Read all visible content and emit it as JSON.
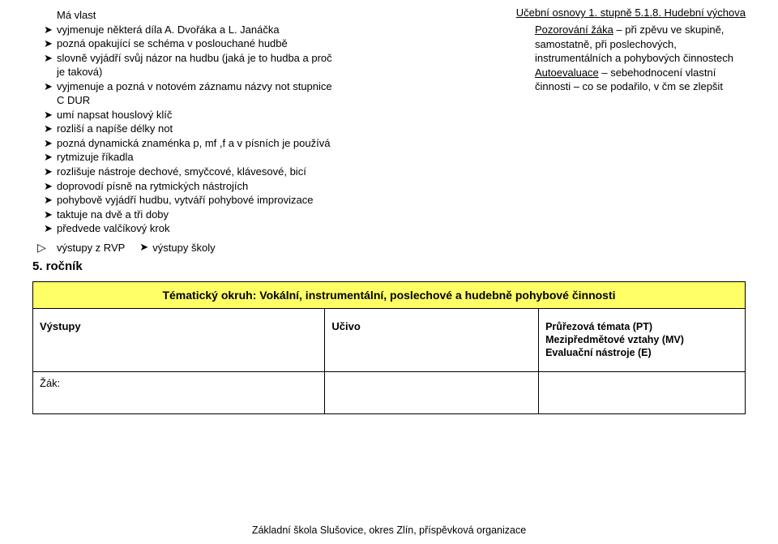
{
  "header": {
    "right": "Učební osnovy 1. stupně 5.1.8. Hudební výchova"
  },
  "left_list": {
    "top_indent": "Má vlast",
    "items": [
      "vyjmenuje některá díla A. Dvořáka a L. Janáčka",
      "pozná opakující se schéma v poslouchané hudbě",
      "slovně vyjádří svůj názor na hudbu (jaká je to hudba a proč je taková)",
      "vyjmenuje a pozná  v notovém záznamu názvy not stupnice C DUR",
      "umí napsat houslový klíč",
      "rozliší a napíše délky not",
      "pozná dynamická znaménka p, mf ,f a v písních je používá",
      "rytmizuje říkadla",
      "rozlišuje nástroje dechové, smyčcové, klávesové, bicí",
      "doprovodí písně na rytmických nástrojích",
      "pohybově vyjádří hudbu, vytváří pohybové improvizace",
      "taktuje na dvě a tři doby",
      "předvede valčíkový krok"
    ]
  },
  "right_box": {
    "l1_u": "Pozorování žáka",
    "l1_rest": " – při zpěvu ve skupině, samostatně, při poslechových, instrumentálních a pohybových činnostech",
    "l2_u": "Autoevaluace",
    "l2_rest": " – sebehodnocení vlastní činnosti – co se podařilo, v čm se zlepšit"
  },
  "rvp": {
    "label1": "výstupy z RVP",
    "label2": "výstupy školy"
  },
  "grade": "5. ročník",
  "table": {
    "title": "Tématický okruh: Vokální, instrumentální, poslechové a hudebně pohybové činnosti",
    "col1_head": "Výstupy",
    "col2_head": "Učivo",
    "col3_l1": "Průřezová témata (PT)",
    "col3_l2": "Mezipředmětové vztahy (MV)",
    "col3_l3": "Evaluační nástroje (E)",
    "body_col1": "Žák:"
  },
  "footer": "Základní škola Slušovice, okres Zlín, příspěvková organizace"
}
